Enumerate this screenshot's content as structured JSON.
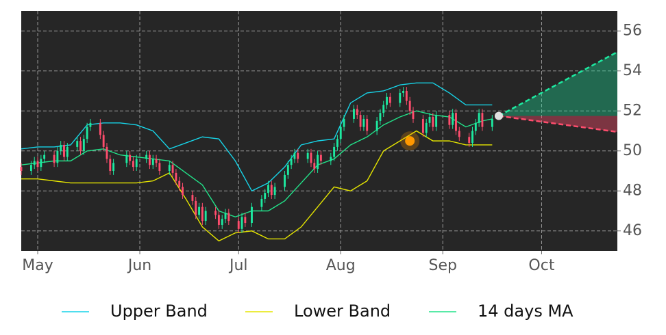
{
  "chart_data": {
    "type": "candlestick",
    "plot_background": "#262626",
    "grid": true,
    "xlim": [
      -5,
      176
    ],
    "ylim": [
      45,
      57
    ],
    "xticks": [
      {
        "value": 0,
        "label": "May"
      },
      {
        "value": 31,
        "label": "Jun"
      },
      {
        "value": 61,
        "label": "Jul"
      },
      {
        "value": 92,
        "label": "Aug"
      },
      {
        "value": 123,
        "label": "Sep"
      },
      {
        "value": 153,
        "label": "Oct"
      }
    ],
    "yticks": [
      46,
      48,
      50,
      52,
      54,
      56
    ],
    "candles": {
      "up_color": "#1de9a0",
      "down_color": "#ff4d6d",
      "x": [
        -5,
        -2,
        -1,
        0,
        1,
        2,
        5,
        6,
        7,
        8,
        9,
        12,
        13,
        14,
        15,
        16,
        19,
        20,
        21,
        22,
        23,
        27,
        28,
        29,
        30,
        33,
        34,
        35,
        36,
        37,
        40,
        41,
        42,
        43,
        44,
        47,
        48,
        49,
        50,
        51,
        54,
        55,
        56,
        57,
        58,
        61,
        62,
        63,
        65,
        68,
        69,
        70,
        71,
        72,
        75,
        76,
        77,
        78,
        79,
        82,
        83,
        84,
        85,
        86,
        89,
        90,
        91,
        92,
        93,
        96,
        97,
        98,
        99,
        100,
        103,
        104,
        105,
        106,
        107,
        110,
        111,
        112,
        113,
        114,
        117,
        118,
        119,
        120,
        121,
        125,
        126,
        127,
        128,
        131,
        132,
        133,
        134,
        135,
        138
      ],
      "open": [
        49.2,
        49.0,
        49.3,
        49.5,
        49.2,
        49.6,
        49.8,
        49.4,
        50.0,
        50.3,
        49.7,
        50.2,
        50.5,
        50.0,
        50.6,
        51.2,
        51.4,
        50.8,
        50.2,
        49.6,
        49.0,
        49.4,
        49.8,
        49.5,
        49.2,
        49.6,
        49.8,
        49.3,
        49.6,
        49.4,
        49.0,
        49.3,
        48.9,
        48.5,
        48.2,
        47.8,
        47.5,
        46.8,
        47.2,
        46.5,
        47.0,
        46.8,
        46.3,
        46.6,
        46.9,
        46.5,
        46.1,
        46.7,
        46.4,
        47.2,
        47.6,
        47.9,
        48.3,
        47.8,
        48.2,
        48.8,
        49.3,
        49.6,
        49.9,
        49.6,
        49.9,
        49.4,
        49.1,
        49.8,
        49.5,
        49.7,
        50.2,
        50.6,
        51.2,
        51.6,
        52.1,
        51.8,
        51.2,
        51.6,
        51.0,
        51.5,
        51.9,
        52.3,
        52.7,
        52.4,
        52.9,
        53.0,
        52.5,
        52.0,
        51.6,
        50.9,
        51.4,
        51.7,
        51.2,
        51.8,
        51.3,
        51.9,
        51.0,
        50.7,
        50.4,
        51.0,
        51.4,
        51.9,
        51.2
      ],
      "close": [
        49.0,
        49.3,
        49.5,
        49.2,
        49.6,
        49.8,
        49.4,
        50.0,
        50.3,
        49.7,
        50.2,
        50.5,
        50.0,
        50.6,
        51.2,
        51.4,
        50.8,
        50.2,
        49.6,
        49.0,
        49.4,
        49.8,
        49.5,
        49.2,
        49.6,
        49.8,
        49.3,
        49.6,
        49.4,
        49.0,
        49.3,
        48.9,
        48.5,
        48.2,
        47.8,
        47.5,
        46.8,
        47.2,
        46.5,
        47.0,
        46.8,
        46.3,
        46.6,
        46.9,
        46.5,
        46.1,
        46.7,
        46.4,
        47.2,
        47.6,
        47.9,
        48.3,
        47.8,
        48.2,
        48.8,
        49.3,
        49.6,
        49.9,
        49.6,
        49.9,
        49.4,
        49.1,
        49.8,
        49.5,
        49.7,
        50.2,
        50.6,
        51.2,
        51.6,
        52.1,
        51.8,
        51.2,
        51.6,
        51.0,
        51.5,
        51.9,
        52.3,
        52.7,
        52.4,
        52.9,
        53.0,
        52.5,
        52.0,
        51.6,
        50.9,
        51.4,
        51.7,
        51.2,
        51.8,
        51.3,
        51.9,
        51.0,
        50.7,
        50.4,
        51.0,
        51.4,
        51.9,
        51.2,
        51.6
      ],
      "high": [
        49.4,
        49.5,
        49.7,
        49.7,
        49.8,
        50.0,
        50.0,
        50.2,
        50.5,
        50.5,
        50.4,
        50.7,
        50.7,
        50.8,
        51.4,
        51.6,
        51.6,
        51.0,
        50.4,
        49.8,
        49.6,
        50.0,
        50.0,
        49.7,
        49.8,
        50.0,
        50.0,
        49.8,
        49.8,
        49.6,
        49.5,
        49.5,
        49.1,
        48.7,
        48.4,
        48.0,
        47.7,
        47.4,
        47.4,
        47.2,
        47.2,
        47.0,
        46.8,
        47.1,
        47.1,
        46.7,
        46.9,
        46.9,
        47.4,
        47.8,
        48.1,
        48.5,
        48.5,
        48.4,
        49.0,
        49.5,
        49.8,
        50.1,
        50.1,
        50.1,
        50.1,
        49.6,
        50.0,
        50.0,
        49.9,
        50.4,
        50.8,
        51.4,
        51.8,
        52.3,
        52.3,
        52.0,
        51.8,
        51.8,
        51.7,
        52.1,
        52.5,
        52.9,
        52.9,
        53.1,
        53.2,
        53.2,
        52.7,
        52.2,
        51.8,
        51.6,
        51.9,
        51.9,
        52.0,
        52.0,
        52.1,
        52.1,
        51.2,
        50.9,
        51.2,
        51.6,
        52.1,
        52.1,
        51.8
      ],
      "low": [
        48.8,
        48.8,
        49.1,
        49.0,
        49.0,
        49.4,
        49.2,
        49.2,
        49.8,
        49.5,
        49.5,
        50.0,
        49.8,
        49.8,
        50.4,
        51.0,
        50.6,
        50.0,
        49.4,
        48.8,
        48.8,
        49.2,
        49.3,
        49.0,
        49.0,
        49.4,
        49.1,
        49.1,
        49.2,
        48.8,
        48.8,
        48.7,
        48.3,
        48.0,
        47.6,
        47.3,
        46.6,
        46.6,
        46.3,
        46.3,
        46.6,
        46.1,
        46.1,
        46.4,
        46.3,
        45.9,
        45.9,
        46.2,
        46.2,
        47.0,
        47.4,
        47.7,
        47.6,
        47.6,
        48.0,
        48.6,
        49.1,
        49.4,
        49.4,
        49.4,
        49.2,
        48.9,
        48.9,
        49.3,
        49.3,
        49.5,
        50.0,
        50.4,
        51.0,
        51.4,
        51.6,
        51.0,
        51.0,
        50.8,
        50.8,
        51.3,
        51.7,
        52.1,
        52.2,
        52.2,
        52.7,
        52.3,
        51.8,
        51.4,
        50.7,
        50.7,
        51.2,
        51.0,
        51.0,
        51.1,
        51.1,
        50.8,
        50.5,
        50.2,
        50.2,
        50.8,
        51.2,
        51.0,
        51.0
      ]
    },
    "series": [
      {
        "name": "Upper Band",
        "color": "#17d4e8",
        "x": [
          -5,
          0,
          5,
          10,
          15,
          20,
          25,
          30,
          35,
          40,
          45,
          50,
          55,
          60,
          65,
          70,
          75,
          80,
          85,
          90,
          95,
          100,
          105,
          110,
          115,
          120,
          125,
          130,
          135,
          138
        ],
        "values": [
          50.1,
          50.2,
          50.2,
          50.3,
          51.3,
          51.4,
          51.4,
          51.3,
          51.0,
          50.1,
          50.4,
          50.7,
          50.6,
          49.5,
          48.0,
          48.4,
          49.2,
          50.3,
          50.5,
          50.6,
          52.4,
          52.9,
          53.0,
          53.3,
          53.4,
          53.4,
          52.9,
          52.3,
          52.3,
          52.3
        ]
      },
      {
        "name": "Lower Band",
        "color": "#e6e600",
        "x": [
          -5,
          0,
          5,
          10,
          15,
          20,
          25,
          30,
          35,
          40,
          45,
          50,
          55,
          60,
          65,
          70,
          75,
          80,
          85,
          90,
          95,
          100,
          105,
          110,
          115,
          120,
          125,
          130,
          135,
          138
        ],
        "values": [
          48.6,
          48.6,
          48.5,
          48.4,
          48.4,
          48.4,
          48.4,
          48.4,
          48.5,
          48.9,
          47.6,
          46.2,
          45.5,
          45.9,
          46.0,
          45.6,
          45.6,
          46.2,
          47.2,
          48.2,
          48.0,
          48.5,
          50.0,
          50.5,
          51.0,
          50.5,
          50.5,
          50.3,
          50.3,
          50.3
        ]
      },
      {
        "name": "14 days MA",
        "color": "#22e38a",
        "x": [
          -5,
          0,
          5,
          10,
          15,
          20,
          25,
          30,
          35,
          40,
          45,
          50,
          55,
          60,
          65,
          70,
          75,
          80,
          85,
          90,
          95,
          100,
          105,
          110,
          115,
          120,
          125,
          130,
          135,
          138
        ],
        "values": [
          49.3,
          49.4,
          49.5,
          49.5,
          50.0,
          50.1,
          49.8,
          49.7,
          49.6,
          49.5,
          48.9,
          48.3,
          47.0,
          46.7,
          47.0,
          47.0,
          47.5,
          48.4,
          49.3,
          49.6,
          50.3,
          50.7,
          51.3,
          51.7,
          52.0,
          51.8,
          51.7,
          51.2,
          51.5,
          51.6
        ]
      }
    ],
    "forecast": {
      "x": [
        140,
        176
      ],
      "upper": [
        51.75,
        54.95
      ],
      "lower": [
        51.75,
        50.95
      ],
      "upper_color": "#1de9a0",
      "lower_color": "#ff4d6d"
    },
    "marker": {
      "x": 113,
      "y": 50.5,
      "color": "#ff9800"
    }
  }
}
